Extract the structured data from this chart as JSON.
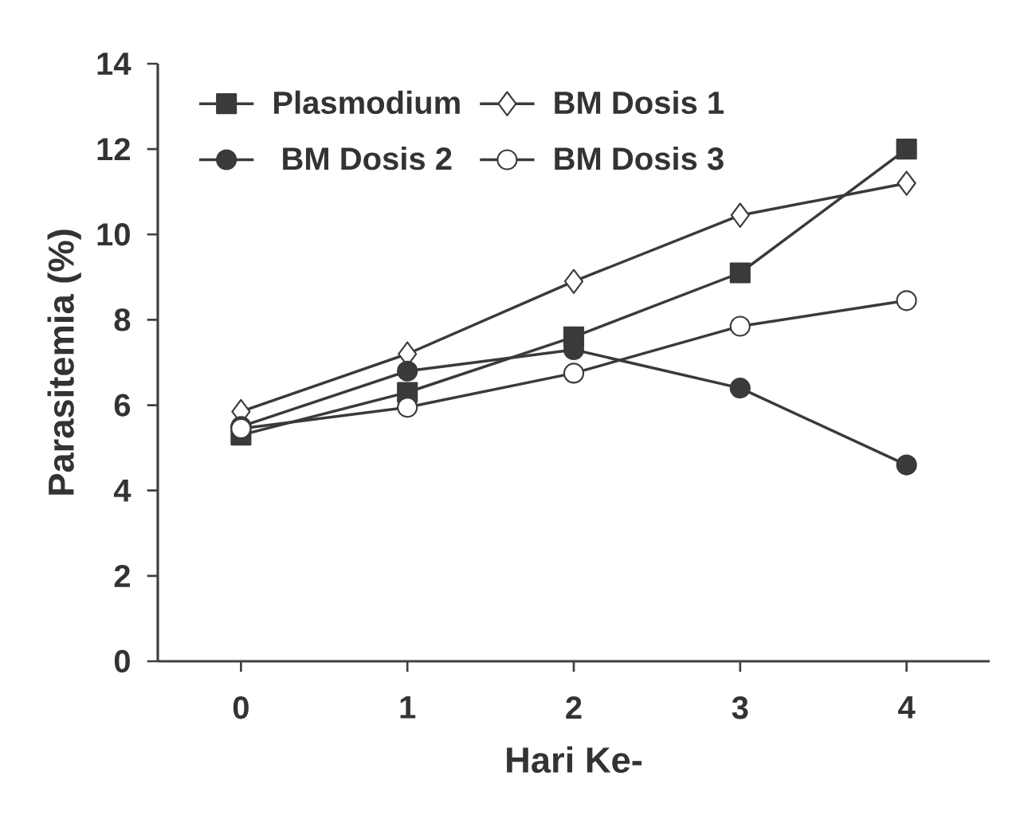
{
  "chart_data": {
    "type": "line",
    "xlabel": "Hari Ke-",
    "ylabel": "Parasitemia (%)",
    "x": [
      0,
      1,
      2,
      3,
      4
    ],
    "xlim": [
      -0.5,
      4.5
    ],
    "xticks": [
      0,
      1,
      2,
      3,
      4
    ],
    "ylim": [
      0,
      14
    ],
    "yticks": [
      0,
      2,
      4,
      6,
      8,
      10,
      12,
      14
    ],
    "grid": false,
    "legend": "top left",
    "line_style": "solid",
    "series": [
      {
        "name": "Plasmodium",
        "color": "#3a3a3a",
        "marker": "square",
        "values": [
          5.3,
          6.3,
          7.6,
          9.1,
          12.0
        ]
      },
      {
        "name": "BM Dosis 1",
        "color": "#3a3a3a",
        "marker": "diamond",
        "values": [
          5.85,
          7.2,
          8.9,
          10.45,
          11.2
        ]
      },
      {
        "name": "BM Dosis 2",
        "color": "#3a3a3a",
        "marker": "circle",
        "values": [
          5.5,
          6.8,
          7.3,
          6.4,
          4.6
        ]
      },
      {
        "name": "BM Dosis 3",
        "color": "#3a3a3a",
        "marker": "circle",
        "values": [
          5.45,
          5.95,
          6.75,
          7.85,
          8.45
        ]
      }
    ]
  }
}
